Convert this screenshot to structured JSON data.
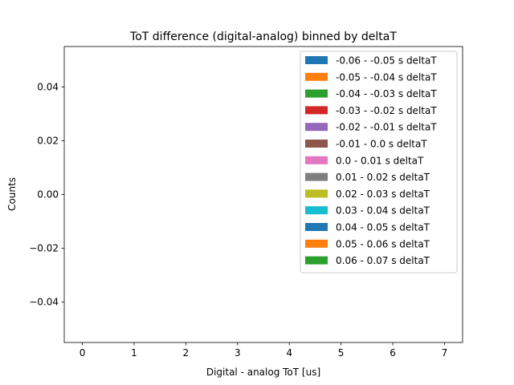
{
  "chart_data": {
    "type": "bar",
    "title": "ToT difference (digital-analog) binned by deltaT",
    "xlabel": "Digital - analog ToT [us]",
    "ylabel": "Counts",
    "xlim": [
      -0.35,
      7.35
    ],
    "ylim": [
      -0.055,
      0.055
    ],
    "x_ticks": [
      0,
      1,
      2,
      3,
      4,
      5,
      6,
      7
    ],
    "x_tick_labels": [
      "0",
      "1",
      "2",
      "3",
      "4",
      "5",
      "6",
      "7"
    ],
    "y_ticks": [
      0.04,
      0.02,
      0.0,
      -0.02,
      -0.04
    ],
    "y_tick_labels": [
      "0.04",
      "0.02",
      "0.00",
      "−0.02",
      "−0.04"
    ],
    "grid": false,
    "legend_position": "top-right",
    "series": [
      {
        "name": "-0.06 - -0.05 s deltaT",
        "color": "#1f77b4",
        "values": []
      },
      {
        "name": "-0.05 - -0.04 s deltaT",
        "color": "#ff7f0e",
        "values": []
      },
      {
        "name": "-0.04 - -0.03 s deltaT",
        "color": "#2ca02c",
        "values": []
      },
      {
        "name": "-0.03 - -0.02 s deltaT",
        "color": "#d62728",
        "values": []
      },
      {
        "name": "-0.02 - -0.01 s deltaT",
        "color": "#9467bd",
        "values": []
      },
      {
        "name": "-0.01 - 0.0 s deltaT",
        "color": "#8c564b",
        "values": []
      },
      {
        "name": "0.0 - 0.01 s deltaT",
        "color": "#e377c2",
        "values": []
      },
      {
        "name": "0.01 - 0.02 s deltaT",
        "color": "#7f7f7f",
        "values": []
      },
      {
        "name": "0.02 - 0.03 s deltaT",
        "color": "#bcbd22",
        "values": []
      },
      {
        "name": "0.03 - 0.04 s deltaT",
        "color": "#17becf",
        "values": []
      },
      {
        "name": "0.04 - 0.05 s deltaT",
        "color": "#1f77b4",
        "values": []
      },
      {
        "name": "0.05 - 0.06 s deltaT",
        "color": "#ff7f0e",
        "values": []
      },
      {
        "name": "0.06 - 0.07 s deltaT",
        "color": "#2ca02c",
        "values": []
      }
    ]
  }
}
